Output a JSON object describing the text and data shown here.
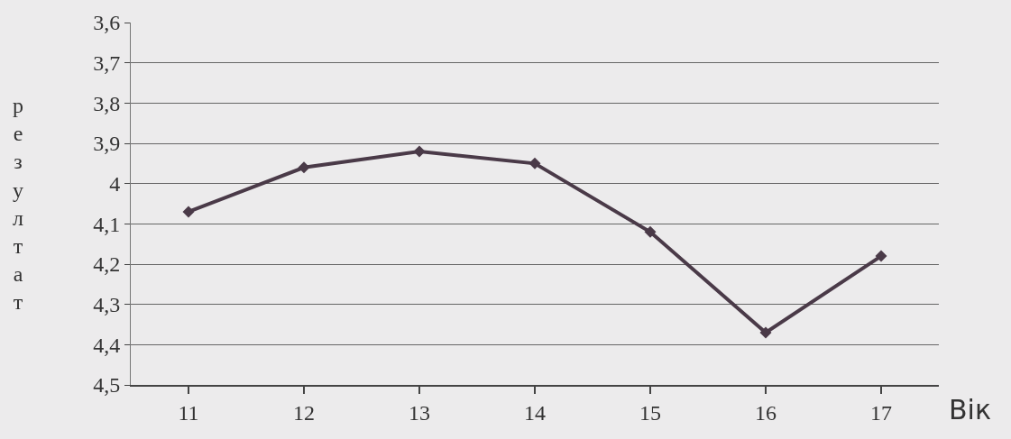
{
  "chart_data": {
    "type": "line",
    "xlabel": "Вік",
    "ylabel": "резултат",
    "x": [
      11,
      12,
      13,
      14,
      15,
      16,
      17
    ],
    "series": [
      {
        "color": "#4a3a48",
        "values": [
          4.07,
          3.96,
          3.92,
          3.95,
          4.12,
          4.37,
          4.18
        ]
      }
    ],
    "xlim": [
      10.5,
      17.5
    ],
    "xticks": [
      11,
      12,
      13,
      14,
      15,
      16,
      17
    ],
    "ylim": [
      4.5,
      3.6
    ],
    "yticks": [
      {
        "value": 3.6,
        "label": "3,6"
      },
      {
        "value": 3.7,
        "label": "3,7"
      },
      {
        "value": 3.8,
        "label": "3,8"
      },
      {
        "value": 3.9,
        "label": "3,9"
      },
      4,
      {
        "value": 4.1,
        "label": "4,1"
      },
      {
        "value": 4.2,
        "label": "4,2"
      },
      {
        "value": 4.3,
        "label": "4,3"
      },
      {
        "value": 4.4,
        "label": "4,4"
      },
      {
        "value": 4.5,
        "label": "4,5"
      }
    ],
    "grid": "y",
    "marker": "diamond",
    "line_style": "solid",
    "legend": false
  }
}
